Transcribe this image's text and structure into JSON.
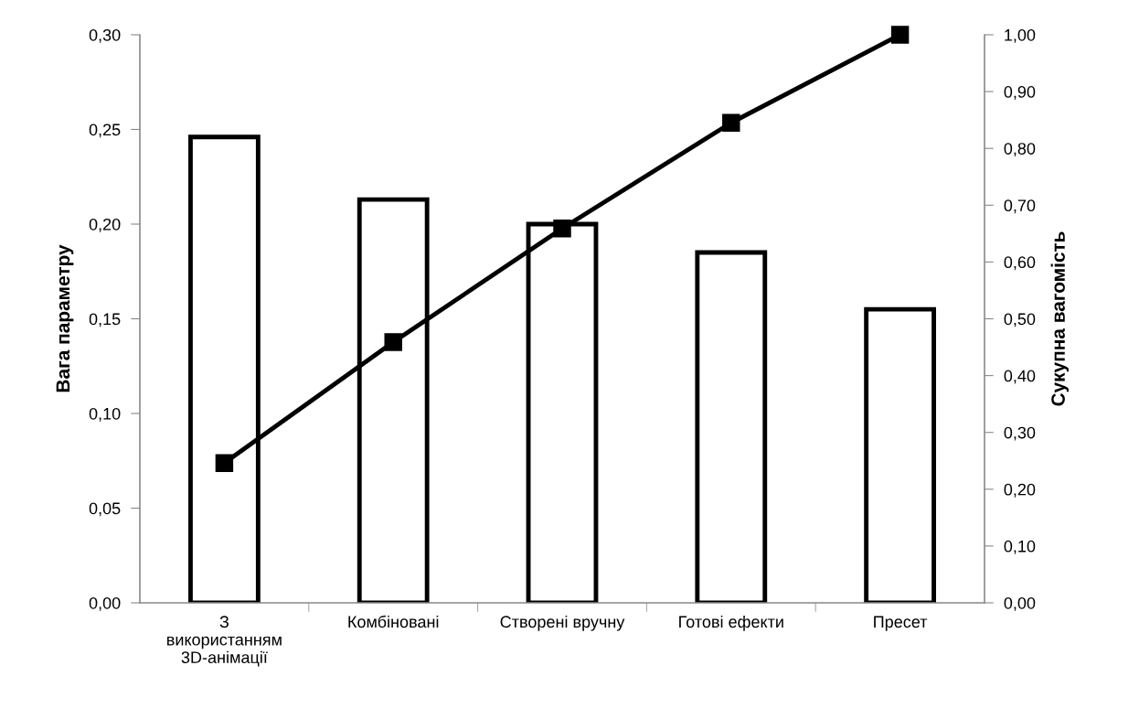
{
  "chart_data": {
    "type": "bar",
    "categories": [
      "З використанням 3D-анімації",
      "Комбіновані",
      "Створені вручну",
      "Готові ефекти",
      "Пресет"
    ],
    "ylabel": "Вага параметру",
    "y2label": "Сукупна вагомість",
    "series": [
      {
        "color": "#ffffff",
        "values": [
          0.246,
          0.213,
          0.2,
          0.185,
          0.155
        ]
      },
      {
        "type": "line",
        "axis": "y2",
        "color": "#000000",
        "marker": "square",
        "values": [
          0.246,
          0.459,
          0.659,
          0.845,
          1.0
        ]
      }
    ],
    "ylim": [
      0,
      0.3
    ],
    "yticks": [
      {
        "value": 0,
        "label": "0,00"
      },
      {
        "value": 0.05,
        "label": "0,05"
      },
      {
        "value": 0.1,
        "label": "0,10"
      },
      {
        "value": 0.15,
        "label": "0,15"
      },
      {
        "value": 0.2,
        "label": "0,20"
      },
      {
        "value": 0.25,
        "label": "0,25"
      },
      {
        "value": 0.3,
        "label": "0,30"
      }
    ],
    "y2lim": [
      0,
      1.0
    ],
    "y2ticks": [
      {
        "value": 0,
        "label": "0,00"
      },
      {
        "value": 0.1,
        "label": "0,10"
      },
      {
        "value": 0.2,
        "label": "0,20"
      },
      {
        "value": 0.3,
        "label": "0,30"
      },
      {
        "value": 0.4,
        "label": "0,40"
      },
      {
        "value": 0.5,
        "label": "0,50"
      },
      {
        "value": 0.6,
        "label": "0,60"
      },
      {
        "value": 0.7,
        "label": "0,70"
      },
      {
        "value": 0.8,
        "label": "0,80"
      },
      {
        "value": 0.9,
        "label": "0,90"
      },
      {
        "value": 1.0,
        "label": "1,00"
      }
    ],
    "grid": false,
    "legend": false
  }
}
